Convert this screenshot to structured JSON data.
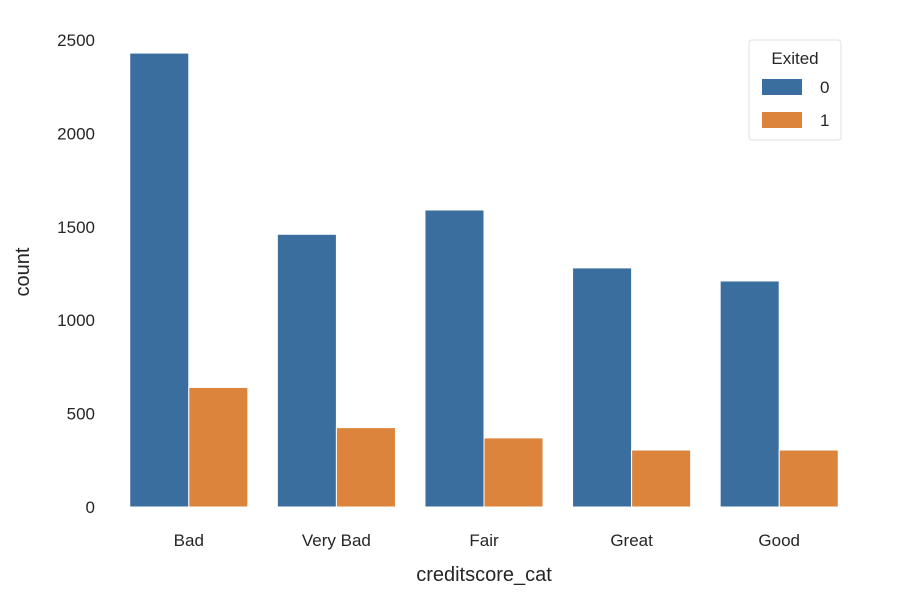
{
  "chart_data": {
    "type": "bar",
    "title": "",
    "xlabel": "creditscore_cat",
    "ylabel": "count",
    "categories": [
      "Bad",
      "Very Bad",
      "Fair",
      "Great",
      "Good"
    ],
    "series": [
      {
        "name": "0",
        "color": "#3a6e9f",
        "values": [
          2430,
          1460,
          1590,
          1280,
          1210
        ]
      },
      {
        "name": "1",
        "color": "#dc843b",
        "values": [
          640,
          425,
          370,
          305,
          305
        ]
      }
    ],
    "legend": {
      "title": "Exited",
      "placement": "top-right"
    },
    "ylim": [
      0,
      2500
    ],
    "yticks": [
      0,
      500,
      1000,
      1500,
      2000,
      2500
    ],
    "grid": false
  }
}
